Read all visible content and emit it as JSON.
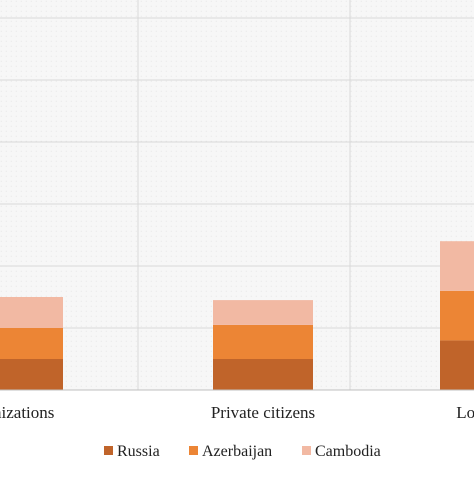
{
  "chart_data": {
    "type": "bar",
    "stacked": true,
    "categories": [
      "Public organizations",
      "Private citizens",
      "Local self-government"
    ],
    "visible_category_labels": [
      "rganizations",
      "Private citizens",
      "Local self"
    ],
    "series": [
      {
        "name": "Russia",
        "color": "#C0642A",
        "values": [
          0.5,
          0.5,
          0.8
        ]
      },
      {
        "name": "Azerbaijan",
        "color": "#EC8535",
        "values": [
          0.5,
          0.55,
          0.8
        ]
      },
      {
        "name": "Cambodia",
        "color": "#F2B9A3",
        "values": [
          0.5,
          0.4,
          0.8
        ]
      }
    ],
    "ylim": [
      0,
      6
    ],
    "grid": true,
    "legend_position": "bottom-right",
    "title": "",
    "xlabel": "",
    "ylabel": ""
  }
}
